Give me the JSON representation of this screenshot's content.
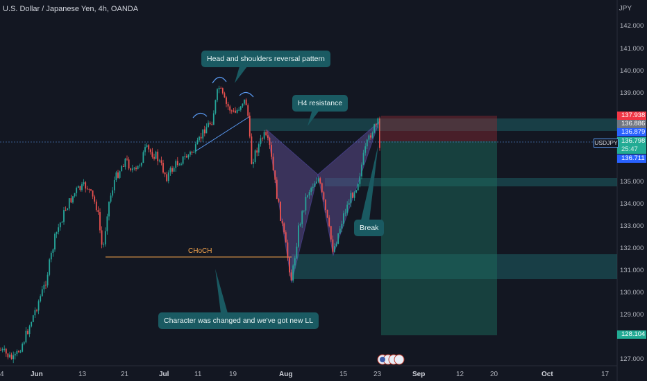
{
  "header": {
    "title": "U.S. Dollar / Japanese Yen, 4h, OANDA",
    "currency": "JPY"
  },
  "price_axis": {
    "labels": [
      "142.000",
      "141.000",
      "140.000",
      "139.000",
      "135.000",
      "134.000",
      "133.000",
      "132.000",
      "131.000",
      "130.000",
      "129.000",
      "127.000"
    ],
    "badges": {
      "stop": "137.938",
      "b1": "136.886",
      "b2": "136.879",
      "last": "136.798",
      "countdown": "25:47",
      "entry": "136.711",
      "target": "128.104"
    },
    "symbol_tag": "USDJPY"
  },
  "time_axis": {
    "labels": [
      "4",
      "Jun",
      "13",
      "21",
      "Jul",
      "11",
      "19",
      "Aug",
      "15",
      "23",
      "Sep",
      "12",
      "20",
      "Oct",
      "17"
    ]
  },
  "annotations": {
    "head_shoulders": "Head and shoulders reversal pattern",
    "h4_resistance": "H4 resistance",
    "break": "Break",
    "character_changed": "Character was changed and we've got new LL",
    "choch": "CHoCH"
  },
  "colors": {
    "background": "#131722",
    "up": "#26a69a",
    "down": "#ef5350",
    "callout": "#1a5a62",
    "choch_line": "#f5a44c",
    "pattern_fill": "#5b4b8a",
    "entry_badge": "#2962ff"
  }
}
